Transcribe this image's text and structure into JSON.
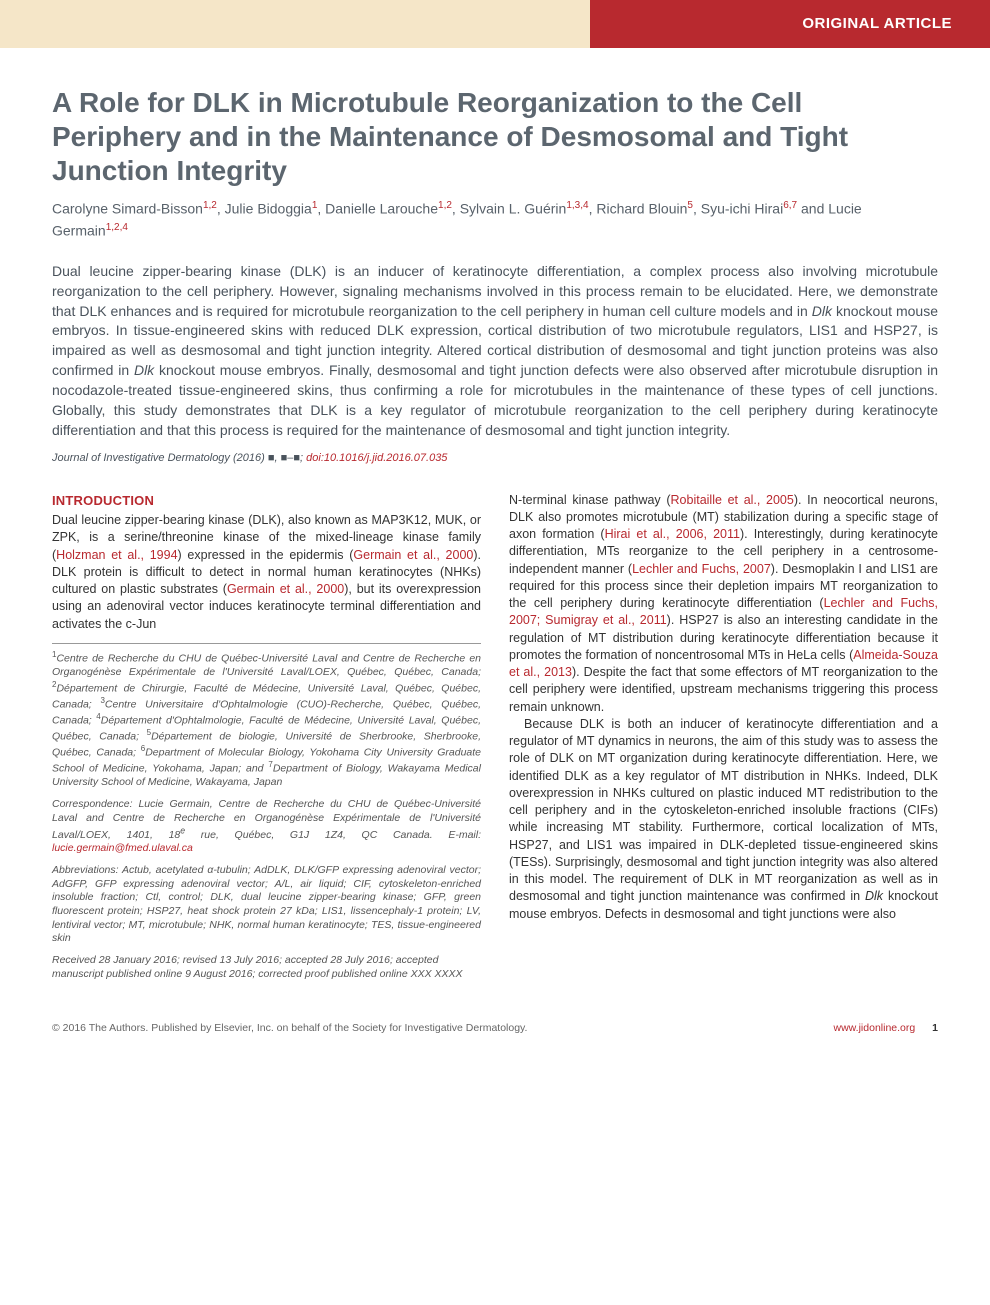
{
  "colors": {
    "accent": "#b8292f",
    "cream": "#f5e6c8",
    "title_text": "#5c666f",
    "body_text": "#333333",
    "muted_text": "#4a535c"
  },
  "header": {
    "label": "ORIGINAL ARTICLE"
  },
  "article": {
    "title": "A Role for DLK in Microtubule Reorganization to the Cell Periphery and in the Maintenance of Desmosomal and Tight Junction Integrity",
    "authors_html": "Carolyne Simard-Bisson<sup>1,2</sup>, Julie Bidoggia<sup>1</sup>, Danielle Larouche<sup>1,2</sup>, Sylvain L. Guérin<sup>1,3,4</sup>, Richard Blouin<sup>5</sup>, Syu-ichi Hirai<sup>6,7</sup> and Lucie Germain<sup>1,2,4</sup>",
    "abstract_html": "Dual leucine zipper-bearing kinase (DLK) is an inducer of keratinocyte differentiation, a complex process also involving microtubule reorganization to the cell periphery. However, signaling mechanisms involved in this process remain to be elucidated. Here, we demonstrate that DLK enhances and is required for microtubule reorganization to the cell periphery in human cell culture models and in <em>Dlk</em> knockout mouse embryos. In tissue-engineered skins with reduced DLK expression, cortical distribution of two microtubule regulators, LIS1 and HSP27, is impaired as well as desmosomal and tight junction integrity. Altered cortical distribution of desmosomal and tight junction proteins was also confirmed in <em>Dlk</em> knockout mouse embryos. Finally, desmosomal and tight junction defects were also observed after microtubule disruption in nocodazole-treated tissue-engineered skins, thus confirming a role for microtubules in the maintenance of these types of cell junctions. Globally, this study demonstrates that DLK is a key regulator of microtubule reorganization to the cell periphery during keratinocyte differentiation and that this process is required for the maintenance of desmosomal and tight junction integrity.",
    "citation": {
      "journal": "Journal of Investigative Dermatology",
      "year": "(2016)",
      "vol": "■, ■–■;",
      "doi_label": "doi:10.1016/j.jid.2016.07.035"
    }
  },
  "introduction": {
    "heading": "INTRODUCTION",
    "p1_html": "Dual leucine zipper-bearing kinase (DLK), also known as MAP3K12, MUK, or ZPK, is a serine/threonine kinase of the mixed-lineage kinase family (<span class=\"ref\">Holzman et al., 1994</span>) expressed in the epidermis (<span class=\"ref\">Germain et al., 2000</span>). DLK protein is difficult to detect in normal human keratinocytes (NHKs) cultured on plastic substrates (<span class=\"ref\">Germain et al., 2000</span>), but its overexpression using an adenoviral vector induces keratinocyte terminal differentiation and activates the c-Jun",
    "p2_html": "N-terminal kinase pathway (<span class=\"ref\">Robitaille et al., 2005</span>). In neocortical neurons, DLK also promotes microtubule (MT) stabilization during a specific stage of axon formation (<span class=\"ref\">Hirai et al., 2006, 2011</span>). Interestingly, during keratinocyte differentiation, MTs reorganize to the cell periphery in a centrosome-independent manner (<span class=\"ref\">Lechler and Fuchs, 2007</span>). Desmoplakin I and LIS1 are required for this process since their depletion impairs MT reorganization to the cell periphery during keratinocyte differentiation (<span class=\"ref\">Lechler and Fuchs, 2007; Sumigray et al., 2011</span>). HSP27 is also an interesting candidate in the regulation of MT distribution during keratinocyte differentiation because it promotes the formation of noncentrosomal MTs in HeLa cells (<span class=\"ref\">Almeida-Souza et al., 2013</span>). Despite the fact that some effectors of MT reorganization to the cell periphery were identified, upstream mechanisms triggering this process remain unknown.",
    "p3_html": "Because DLK is both an inducer of keratinocyte differentiation and a regulator of MT dynamics in neurons, the aim of this study was to assess the role of DLK on MT organization during keratinocyte differentiation. Here, we identified DLK as a key regulator of MT distribution in NHKs. Indeed, DLK overexpression in NHKs cultured on plastic induced MT redistribution to the cell periphery and in the cytoskeleton-enriched insoluble fractions (CIFs) while increasing MT stability. Furthermore, cortical localization of MTs, HSP27, and LIS1 was impaired in DLK-depleted tissue-engineered skins (TESs). Surprisingly, desmosomal and tight junction integrity was also altered in this model. The requirement of DLK in MT reorganization as well as in desmosomal and tight junction maintenance was confirmed in <em>Dlk</em> knockout mouse embryos. Defects in desmosomal and tight junctions were also"
  },
  "affiliations_html": "<sup>1</sup>Centre de Recherche du CHU de Québec-Université Laval and Centre de Recherche en Organogénèse Expérimentale de l'Université Laval/LOEX, Québec, Québec, Canada; <sup>2</sup>Département de Chirurgie, Faculté de Médecine, Université Laval, Québec, Québec, Canada; <sup>3</sup>Centre Universitaire d'Ophtalmologie (CUO)-Recherche, Québec, Québec, Canada; <sup>4</sup>Département d'Ophtalmologie, Faculté de Médecine, Université Laval, Québec, Québec, Canada; <sup>5</sup>Département de biologie, Université de Sherbrooke, Sherbrooke, Québec, Canada; <sup>6</sup>Department of Molecular Biology, Yokohama City University Graduate School of Medicine, Yokohama, Japan; and <sup>7</sup>Department of Biology, Wakayama Medical University School of Medicine, Wakayama, Japan",
  "correspondence": {
    "text": "Correspondence: Lucie Germain, Centre de Recherche du CHU de Québec-Université Laval and Centre de Recherche en Organogénèse Expérimentale de l'Université Laval/LOEX, 1401, 18<sup>e</sup> rue, Québec, G1J 1Z4, QC Canada. E-mail: ",
    "email": "lucie.germain@fmed.ulaval.ca"
  },
  "abbreviations": "Abbreviations: Actub, acetylated α-tubulin; AdDLK, DLK/GFP expressing adenoviral vector; AdGFP, GFP expressing adenoviral vector; A/L, air liquid; CIF, cytoskeleton-enriched insoluble fraction; Ctl, control; DLK, dual leucine zipper-bearing kinase; GFP, green fluorescent protein; HSP27, heat shock protein 27 kDa; LIS1, lissencephaly-1 protein; LV, lentiviral vector; MT, microtubule; NHK, normal human keratinocyte; TES, tissue-engineered skin",
  "dates": "Received 28 January 2016; revised 13 July 2016; accepted 28 July 2016; accepted manuscript published online 9 August 2016; corrected proof published online XXX XXXX",
  "footer": {
    "copyright": "© 2016 The Authors. Published by Elsevier, Inc. on behalf of the Society for Investigative Dermatology.",
    "link": "www.jidonline.org",
    "page": "1"
  }
}
